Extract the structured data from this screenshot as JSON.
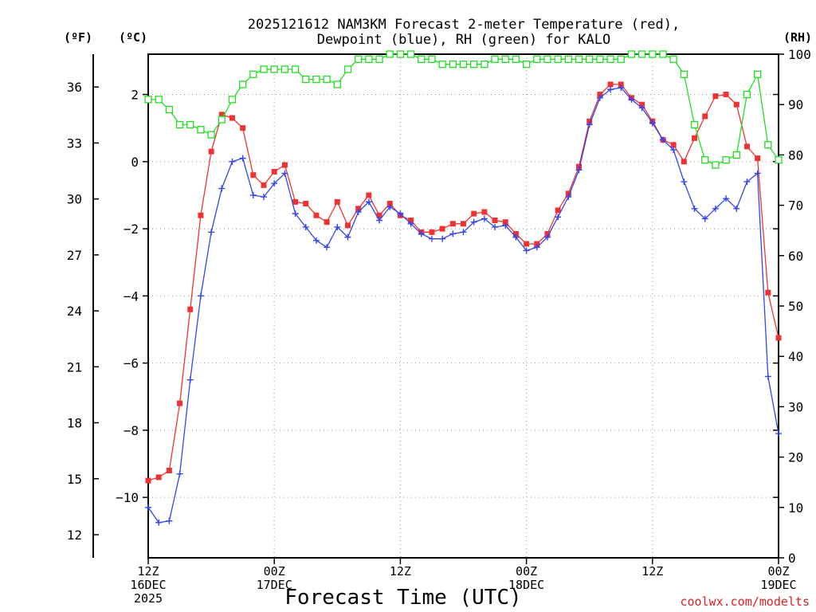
{
  "chart_data": {
    "type": "line",
    "title": [
      "2025121612 NAM3KM Forecast 2-meter Temperature (red),",
      "Dewpoint (blue), RH (green) for KALO"
    ],
    "xlabel": "Forecast Time (UTC)",
    "credit": "coolwx.com/modelts",
    "x_range_hours": [
      0,
      60
    ],
    "x_ticks": [
      {
        "hour": 0,
        "lines": [
          "12Z",
          "16DEC",
          "2025"
        ]
      },
      {
        "hour": 12,
        "lines": [
          "00Z",
          "17DEC"
        ]
      },
      {
        "hour": 24,
        "lines": [
          "12Z"
        ]
      },
      {
        "hour": 36,
        "lines": [
          "00Z",
          "18DEC"
        ]
      },
      {
        "hour": 48,
        "lines": [
          "12Z"
        ]
      },
      {
        "hour": 60,
        "lines": [
          "00Z",
          "19DEC"
        ]
      }
    ],
    "left_axis_c": {
      "label": "(ºC)",
      "ticks": [
        2,
        0,
        -2,
        -4,
        -6,
        -8,
        -10
      ],
      "ylim": [
        -11.8,
        3.2
      ]
    },
    "left_axis_f": {
      "label": "(ºF)",
      "ticks": [
        36,
        33,
        30,
        27,
        24,
        21,
        18,
        15,
        12
      ]
    },
    "right_axis": {
      "label": "(RH)",
      "ticks": [
        100,
        90,
        80,
        70,
        60,
        50,
        40,
        30,
        20,
        10,
        0
      ],
      "ylim": [
        0,
        100
      ]
    },
    "series": [
      {
        "name": "Temperature",
        "color": "#ee3333",
        "units": "C",
        "marker": "square",
        "values": [
          -9.5,
          -9.4,
          -9.2,
          -7.2,
          -4.4,
          -1.6,
          0.3,
          1.4,
          1.3,
          1.0,
          -0.4,
          -0.7,
          -0.3,
          -0.1,
          -1.2,
          -1.25,
          -1.6,
          -1.8,
          -1.2,
          -1.9,
          -1.4,
          -1.0,
          -1.6,
          -1.25,
          -1.6,
          -1.75,
          -2.1,
          -2.1,
          -2.0,
          -1.85,
          -1.85,
          -1.55,
          -1.5,
          -1.75,
          -1.8,
          -2.15,
          -2.45,
          -2.45,
          -2.15,
          -1.45,
          -0.95,
          -0.15,
          1.2,
          2.0,
          2.3,
          2.3,
          1.9,
          1.7,
          1.2,
          0.65,
          0.5,
          0.0,
          0.7,
          1.35,
          1.95,
          2.0,
          1.7,
          0.45,
          0.1,
          -3.9,
          -5.25
        ]
      },
      {
        "name": "Dewpoint",
        "color": "#3344ee",
        "units": "C",
        "marker": "plus",
        "values": [
          -10.3,
          -10.75,
          -10.7,
          -9.3,
          -6.5,
          -4.0,
          -2.1,
          -0.8,
          0.0,
          0.1,
          -1.0,
          -1.05,
          -0.65,
          -0.35,
          -1.55,
          -1.95,
          -2.35,
          -2.55,
          -1.95,
          -2.25,
          -1.5,
          -1.2,
          -1.75,
          -1.35,
          -1.55,
          -1.85,
          -2.15,
          -2.3,
          -2.3,
          -2.15,
          -2.1,
          -1.8,
          -1.7,
          -1.95,
          -1.9,
          -2.25,
          -2.65,
          -2.55,
          -2.25,
          -1.65,
          -1.05,
          -0.25,
          1.1,
          1.9,
          2.15,
          2.2,
          1.85,
          1.6,
          1.15,
          0.65,
          0.35,
          -0.6,
          -1.4,
          -1.7,
          -1.4,
          -1.1,
          -1.4,
          -0.6,
          -0.35,
          -6.4,
          -8.1
        ]
      },
      {
        "name": "RH",
        "color": "#22dd22",
        "units": "%",
        "marker": "open-square",
        "values": [
          91,
          91,
          89,
          86,
          86,
          85,
          84,
          87,
          91,
          94,
          96,
          97,
          97,
          97,
          97,
          95,
          95,
          95,
          94,
          97,
          99,
          99,
          99,
          100,
          100,
          100,
          99,
          99,
          98,
          98,
          98,
          98,
          98,
          99,
          99,
          99,
          98,
          99,
          99,
          99,
          99,
          99,
          99,
          99,
          99,
          99,
          100,
          100,
          100,
          100,
          99,
          96,
          86,
          79,
          78,
          79,
          80,
          92,
          96,
          82,
          79
        ]
      }
    ]
  }
}
